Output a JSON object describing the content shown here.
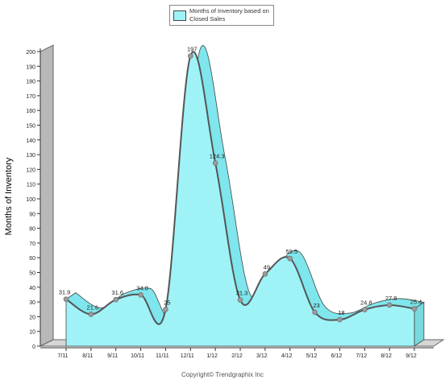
{
  "chart_data": {
    "type": "area",
    "categories": [
      "7/11",
      "8/11",
      "9/11",
      "10/11",
      "11/11",
      "12/11",
      "1/12",
      "2/12",
      "3/12",
      "4/12",
      "5/12",
      "6/12",
      "7/12",
      "8/12",
      "9/12"
    ],
    "series": [
      {
        "name": "Months of Inventory based on Closed Sales",
        "values": [
          31.9,
          21.6,
          31.6,
          34.8,
          25,
          197,
          124.3,
          31.3,
          49,
          59.5,
          23,
          18,
          24.8,
          27.9,
          25.4
        ],
        "labels": [
          "31.9",
          "21.6",
          "31.6",
          "34.8",
          "25",
          "197",
          "124.3",
          "31.3",
          "49",
          "59.5",
          "23",
          "18",
          "24.8",
          "27.9",
          "25.4"
        ]
      }
    ],
    "ylabel": "Months of Inventory",
    "xlabel": "",
    "ylim": [
      0,
      200
    ],
    "yticks": [
      0,
      10,
      20,
      30,
      40,
      50,
      60,
      70,
      80,
      90,
      100,
      110,
      120,
      130,
      140,
      150,
      160,
      170,
      180,
      190,
      200
    ],
    "grid": false,
    "legend_position": "top-center",
    "colors": {
      "fill": "#9ff3f7",
      "top_face": "#7ee6ec",
      "line": "#555555",
      "marker": "#9a9a9a",
      "wall": "#b8b8b8"
    }
  },
  "legend": {
    "label": "Months of Inventory based on Closed Sales"
  },
  "footer": {
    "copyright": "Copyright© Trendgraphix Inc"
  }
}
